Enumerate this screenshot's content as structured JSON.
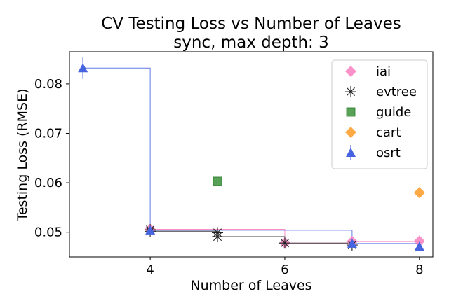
{
  "chart_data": {
    "type": "scatter",
    "title": "CV Testing Loss vs Number of Leaves",
    "subtitle": "sync, max depth: 3",
    "xlabel": "Number of Leaves",
    "ylabel": "Testing Loss (RMSE)",
    "xlim": [
      2.8,
      8.2
    ],
    "ylim": [
      0.045,
      0.0865
    ],
    "xticks": [
      4,
      6,
      8
    ],
    "yticks": [
      0.05,
      0.06,
      0.07,
      0.08
    ],
    "xtick_labels": [
      "4",
      "6",
      "8"
    ],
    "ytick_labels": [
      "0.05",
      "0.06",
      "0.07",
      "0.08"
    ],
    "grid": false,
    "legend_position": "top-right",
    "series": [
      {
        "name": "iai",
        "marker": "diamond",
        "color": "#f77fbe",
        "points": [
          {
            "x": 4,
            "y": 0.0506
          },
          {
            "x": 6,
            "y": 0.0478
          },
          {
            "x": 7,
            "y": 0.0481
          },
          {
            "x": 8,
            "y": 0.0482
          }
        ]
      },
      {
        "name": "evtree",
        "marker": "star",
        "color": "#222222",
        "points": [
          {
            "x": 4,
            "y": 0.0505
          },
          {
            "x": 4,
            "y": 0.0502
          },
          {
            "x": 5,
            "y": 0.0499
          },
          {
            "x": 5,
            "y": 0.0491
          },
          {
            "x": 6,
            "y": 0.0478
          },
          {
            "x": 7,
            "y": 0.0474
          }
        ]
      },
      {
        "name": "guide",
        "marker": "square",
        "color": "#3a923a",
        "points": [
          {
            "x": 5,
            "y": 0.0603
          }
        ]
      },
      {
        "name": "cart",
        "marker": "diamond",
        "color": "#ff9a24",
        "points": [
          {
            "x": 8,
            "y": 0.058
          }
        ]
      },
      {
        "name": "osrt",
        "marker": "triangle",
        "color": "#4764e0",
        "points": [
          {
            "x": 3,
            "y": 0.0832,
            "yerr": 0.0022
          },
          {
            "x": 4,
            "y": 0.0504
          },
          {
            "x": 7,
            "y": 0.0477
          },
          {
            "x": 8,
            "y": 0.0471
          }
        ]
      }
    ]
  }
}
